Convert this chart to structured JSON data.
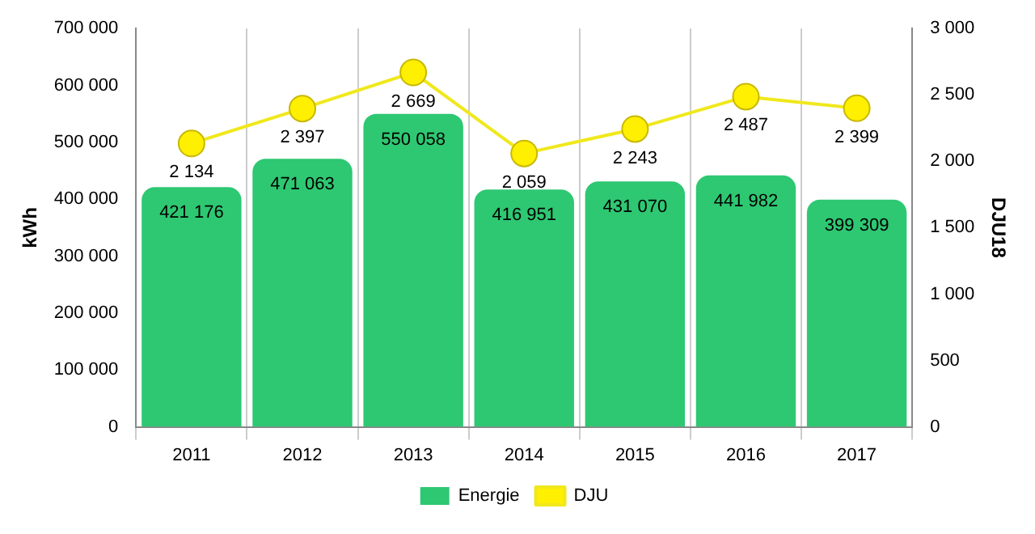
{
  "chart_data": {
    "type": "bar",
    "categories": [
      "2011",
      "2012",
      "2013",
      "2014",
      "2015",
      "2016",
      "2017"
    ],
    "ylabel": "kWh",
    "y2label": "DJU18",
    "series": [
      {
        "name": "Energie",
        "color": "#2ec872",
        "values": [
          421176,
          471063,
          550058,
          416951,
          431070,
          441982,
          399309
        ],
        "value_labels": [
          "421 176",
          "471 063",
          "550 058",
          "416 951",
          "431 070",
          "441 982",
          "399 309"
        ]
      },
      {
        "name": "DJU",
        "type": "line",
        "axis": "y2",
        "color": "#f0e81c",
        "values": [
          2134,
          2397,
          2669,
          2059,
          2243,
          2487,
          2399
        ],
        "value_labels": [
          "2 134",
          "2 397",
          "2 669",
          "2 059",
          "2 243",
          "2 487",
          "2 399"
        ]
      }
    ],
    "ylim": [
      0,
      700000
    ],
    "yticks": [
      0,
      {
        "value": 100000,
        "label": "100 000"
      },
      {
        "value": 200000,
        "label": "200 000"
      },
      {
        "value": 300000,
        "label": "300 000"
      },
      {
        "value": 400000,
        "label": "400 000"
      },
      {
        "value": 500000,
        "label": "500 000"
      },
      {
        "value": 600000,
        "label": "600 000"
      },
      {
        "value": 700000,
        "label": "700 000"
      }
    ],
    "y2lim": [
      0,
      3000
    ],
    "y2ticks": [
      0,
      500,
      {
        "value": 1000,
        "label": "1 000"
      },
      {
        "value": 1500,
        "label": "1 500"
      },
      {
        "value": 2000,
        "label": "2 000"
      },
      {
        "value": 2500,
        "label": "2 500"
      },
      {
        "value": 3000,
        "label": "3 000"
      }
    ],
    "grid": "x",
    "legend": "bottom",
    "marker": "circle",
    "line_style": "solid"
  }
}
